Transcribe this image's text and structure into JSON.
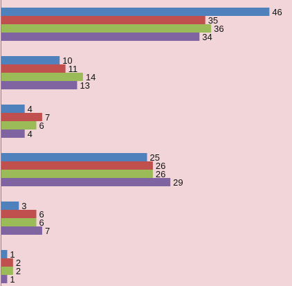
{
  "chart_data": {
    "type": "bar",
    "orientation": "horizontal",
    "categories": [
      "",
      "",
      "",
      "",
      "",
      ""
    ],
    "series": [
      {
        "values": [
          46,
          10,
          4,
          25,
          3,
          1
        ],
        "color": "#4f81bd"
      },
      {
        "values": [
          35,
          11,
          7,
          26,
          6,
          2
        ],
        "color": "#c0504d"
      },
      {
        "values": [
          36,
          14,
          6,
          26,
          6,
          2
        ],
        "color": "#9bbb59"
      },
      {
        "values": [
          34,
          13,
          4,
          29,
          7,
          1
        ],
        "color": "#8064a2"
      }
    ],
    "xlim": [
      0,
      49
    ],
    "grid": false,
    "legend": "none",
    "data_labels": true,
    "background": "#f1d5d9",
    "axis_color": "#888888"
  }
}
